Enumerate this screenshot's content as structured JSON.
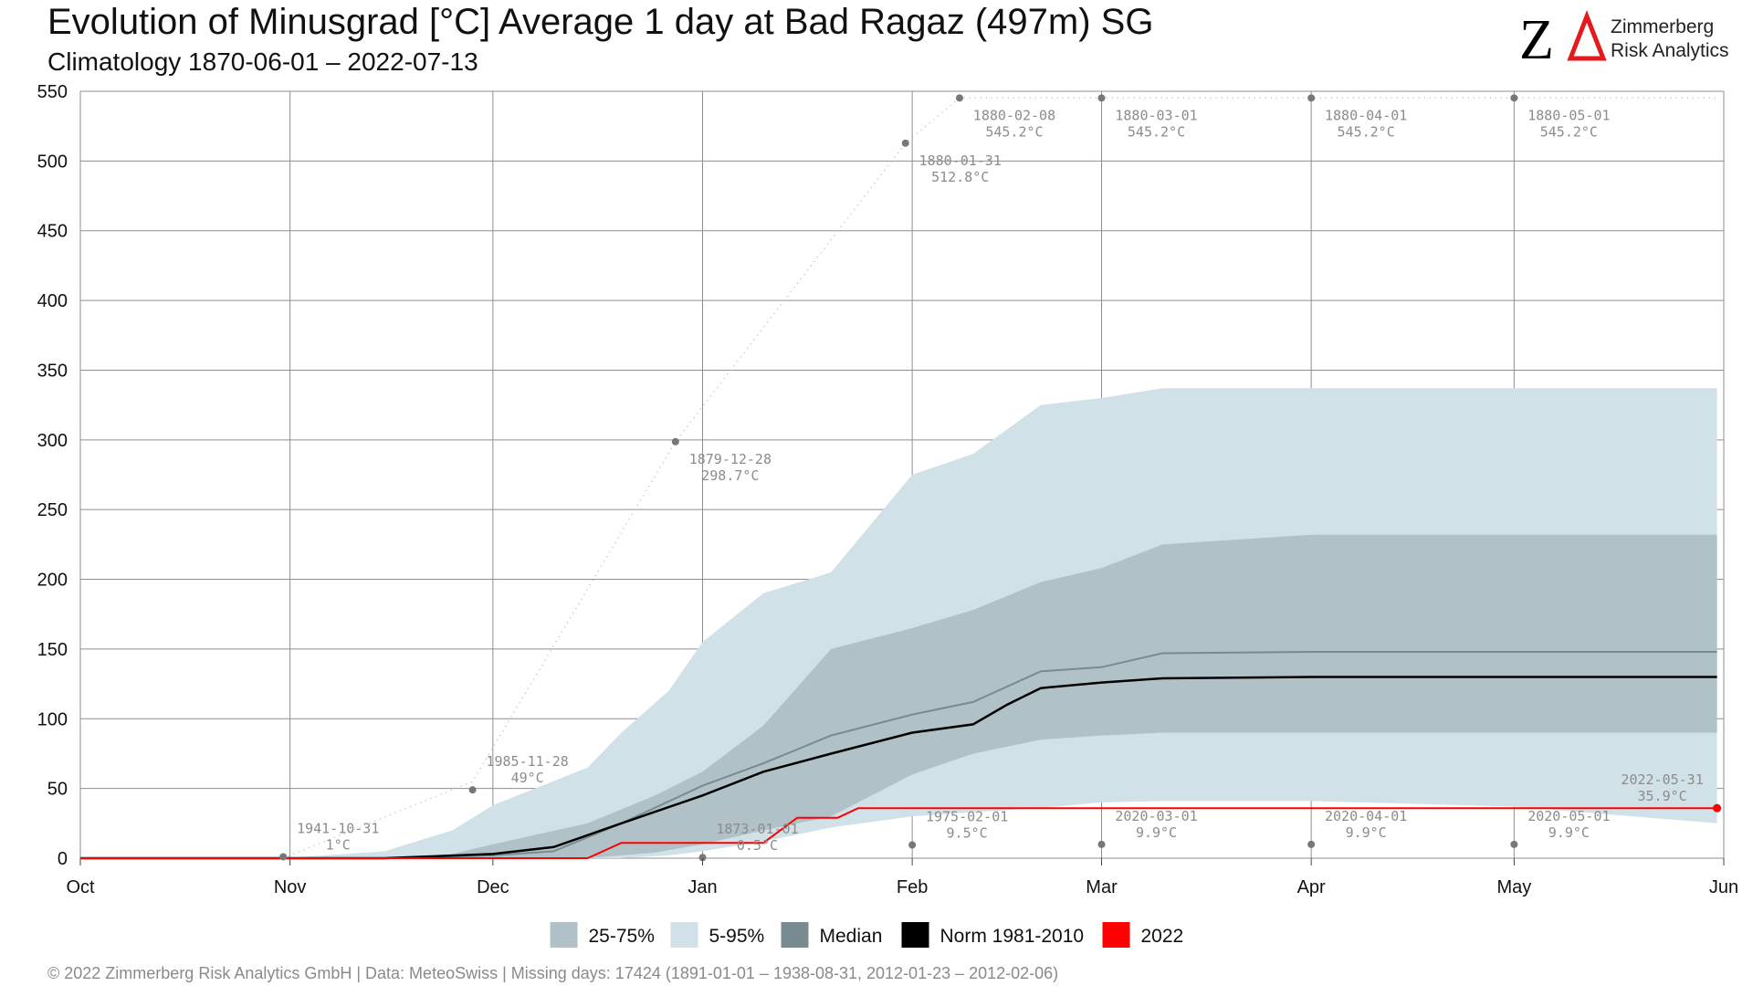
{
  "header": {
    "title": "Evolution of Minusgrad [°C] Average 1 day at Bad Ragaz (497m) SG",
    "subtitle": "Climatology 1870-06-01 – 2022-07-13"
  },
  "logo": {
    "mark": "ZΔ",
    "line1": "Zimmerberg",
    "line2": "Risk Analytics",
    "colors": {
      "z": "#000000",
      "delta": "#e41a1c"
    }
  },
  "footer": {
    "text": "©  2022 Zimmerberg Risk Analytics GmbH | Data: MeteoSwiss | Missing days: 17424 (1891-01-01 – 1938-08-31, 2012-01-23 – 2012-02-06)"
  },
  "colors": {
    "band_25_75": "#b0c1c7",
    "band_5_95": "#d0e2e8",
    "median": "#778b91",
    "norm": "#000000",
    "current": "#ff0000",
    "annotation": "#8c8c8c",
    "grid": "#8f8f8f"
  },
  "chart_data": {
    "type": "area",
    "title": "Evolution of Minusgrad [°C] Average 1 day at Bad Ragaz (497m) SG",
    "subtitle": "Climatology 1870-06-01 – 2022-07-13",
    "x_axis": {
      "type": "date",
      "range": [
        "Oct 1",
        "Jun 1"
      ],
      "tick_labels": [
        "Oct",
        "Nov",
        "Dec",
        "Jan",
        "Feb",
        "Mar",
        "Apr",
        "May",
        "Jun"
      ]
    },
    "y_axis": {
      "range": [
        0,
        550
      ],
      "ticks": [
        0,
        50,
        100,
        150,
        200,
        250,
        300,
        350,
        400,
        450,
        500,
        550
      ]
    },
    "grid": true,
    "legend": {
      "position": "bottom",
      "entries": [
        {
          "label": "25-75%",
          "color": "#b0c1c7"
        },
        {
          "label": "5-95%",
          "color": "#d0e2e8"
        },
        {
          "label": "Median",
          "color": "#778b91"
        },
        {
          "label": "Norm 1981-2010",
          "color": "#000000"
        },
        {
          "label": "2022",
          "color": "#ff0000"
        }
      ]
    },
    "series": {
      "band_5_95": [
        {
          "x": "Oct 1",
          "lo": 0,
          "hi": 0
        },
        {
          "x": "Oct 31",
          "lo": 0,
          "hi": 0
        },
        {
          "x": "Nov 15",
          "lo": 0,
          "hi": 5
        },
        {
          "x": "Nov 25",
          "lo": 0,
          "hi": 20
        },
        {
          "x": "Dec 1",
          "lo": 0,
          "hi": 38
        },
        {
          "x": "Dec 15",
          "lo": 0,
          "hi": 65
        },
        {
          "x": "Dec 20",
          "lo": 0,
          "hi": 90
        },
        {
          "x": "Dec 27",
          "lo": 2,
          "hi": 120
        },
        {
          "x": "Jan 1",
          "lo": 5,
          "hi": 155
        },
        {
          "x": "Jan 10",
          "lo": 12,
          "hi": 190
        },
        {
          "x": "Jan 20",
          "lo": 22,
          "hi": 205
        },
        {
          "x": "Feb 1",
          "lo": 30,
          "hi": 275
        },
        {
          "x": "Feb 10",
          "lo": 33,
          "hi": 290
        },
        {
          "x": "Feb 20",
          "lo": 36,
          "hi": 325
        },
        {
          "x": "Mar 1",
          "lo": 40,
          "hi": 330
        },
        {
          "x": "Mar 10",
          "lo": 41,
          "hi": 337
        },
        {
          "x": "Apr 1",
          "lo": 41,
          "hi": 337
        },
        {
          "x": "May 1",
          "lo": 37,
          "hi": 337
        },
        {
          "x": "May 31",
          "lo": 25,
          "hi": 337
        }
      ],
      "band_25_75": [
        {
          "x": "Oct 1",
          "lo": 0,
          "hi": 0
        },
        {
          "x": "Nov 15",
          "lo": 0,
          "hi": 0
        },
        {
          "x": "Nov 25",
          "lo": 0,
          "hi": 3
        },
        {
          "x": "Dec 1",
          "lo": 0,
          "hi": 10
        },
        {
          "x": "Dec 15",
          "lo": 0,
          "hi": 25
        },
        {
          "x": "Dec 25",
          "lo": 4,
          "hi": 45
        },
        {
          "x": "Jan 1",
          "lo": 10,
          "hi": 62
        },
        {
          "x": "Jan 10",
          "lo": 20,
          "hi": 95
        },
        {
          "x": "Jan 20",
          "lo": 30,
          "hi": 150
        },
        {
          "x": "Feb 1",
          "lo": 60,
          "hi": 165
        },
        {
          "x": "Feb 10",
          "lo": 75,
          "hi": 178
        },
        {
          "x": "Feb 20",
          "lo": 85,
          "hi": 198
        },
        {
          "x": "Mar 1",
          "lo": 88,
          "hi": 208
        },
        {
          "x": "Mar 10",
          "lo": 90,
          "hi": 225
        },
        {
          "x": "Apr 1",
          "lo": 90,
          "hi": 232
        },
        {
          "x": "May 31",
          "lo": 90,
          "hi": 232
        }
      ],
      "median": [
        {
          "x": "Oct 1",
          "y": 0
        },
        {
          "x": "Nov 15",
          "y": 0
        },
        {
          "x": "Dec 1",
          "y": 2
        },
        {
          "x": "Dec 10",
          "y": 5
        },
        {
          "x": "Dec 20",
          "y": 25
        },
        {
          "x": "Jan 1",
          "y": 52
        },
        {
          "x": "Jan 10",
          "y": 68
        },
        {
          "x": "Jan 20",
          "y": 88
        },
        {
          "x": "Feb 1",
          "y": 103
        },
        {
          "x": "Feb 10",
          "y": 112
        },
        {
          "x": "Feb 20",
          "y": 134
        },
        {
          "x": "Mar 1",
          "y": 137
        },
        {
          "x": "Mar 10",
          "y": 147
        },
        {
          "x": "Apr 1",
          "y": 148
        },
        {
          "x": "May 31",
          "y": 148
        }
      ],
      "norm_1981_2010": [
        {
          "x": "Oct 1",
          "y": 0
        },
        {
          "x": "Nov 15",
          "y": 0
        },
        {
          "x": "Dec 1",
          "y": 3
        },
        {
          "x": "Dec 10",
          "y": 8
        },
        {
          "x": "Dec 20",
          "y": 25
        },
        {
          "x": "Jan 1",
          "y": 45
        },
        {
          "x": "Jan 10",
          "y": 62
        },
        {
          "x": "Jan 20",
          "y": 75
        },
        {
          "x": "Feb 1",
          "y": 90
        },
        {
          "x": "Feb 10",
          "y": 96
        },
        {
          "x": "Feb 15",
          "y": 110
        },
        {
          "x": "Feb 20",
          "y": 122
        },
        {
          "x": "Mar 1",
          "y": 126
        },
        {
          "x": "Mar 10",
          "y": 129
        },
        {
          "x": "Apr 1",
          "y": 130
        },
        {
          "x": "May 31",
          "y": 130
        }
      ],
      "year_2022": [
        {
          "x": "Oct 1",
          "y": 0
        },
        {
          "x": "Dec 15",
          "y": 0
        },
        {
          "x": "Dec 20",
          "y": 11
        },
        {
          "x": "Jan 10",
          "y": 11
        },
        {
          "x": "Jan 15",
          "y": 29
        },
        {
          "x": "Jan 21",
          "y": 29
        },
        {
          "x": "Jan 24",
          "y": 35.9
        },
        {
          "x": "May 31",
          "y": 35.9
        }
      ]
    },
    "record_max_markers": [
      {
        "x": "Nov 28",
        "y": 49,
        "date": "1985-11-28",
        "value": "49°C"
      },
      {
        "x": "Dec 28",
        "y": 298.7,
        "date": "1879-12-28",
        "value": "298.7°C"
      },
      {
        "x": "Jan 31",
        "y": 512.8,
        "date": "1880-01-31",
        "value": "512.8°C"
      },
      {
        "x": "Feb 8",
        "y": 545.2,
        "date": "1880-02-08",
        "value": "545.2°C"
      },
      {
        "x": "Mar 1",
        "y": 545.2,
        "date": "1880-03-01",
        "value": "545.2°C"
      },
      {
        "x": "Apr 1",
        "y": 545.2,
        "date": "1880-04-01",
        "value": "545.2°C"
      },
      {
        "x": "May 1",
        "y": 545.2,
        "date": "1880-05-01",
        "value": "545.2°C"
      }
    ],
    "record_min_markers": [
      {
        "x": "Oct 31",
        "y": 1,
        "date": "1941-10-31",
        "value": "1°C"
      },
      {
        "x": "Jan 1",
        "y": 0.5,
        "date": "1873-01-01",
        "value": "0.5°C"
      },
      {
        "x": "Feb 1",
        "y": 9.5,
        "date": "1975-02-01",
        "value": "9.5°C"
      },
      {
        "x": "Mar 1",
        "y": 9.9,
        "date": "2020-03-01",
        "value": "9.9°C"
      },
      {
        "x": "Apr 1",
        "y": 9.9,
        "date": "2020-04-01",
        "value": "9.9°C"
      },
      {
        "x": "May 1",
        "y": 9.9,
        "date": "2020-05-01",
        "value": "9.9°C"
      }
    ],
    "current_marker": {
      "x": "May 31",
      "y": 35.9,
      "date": "2022-05-31",
      "value": "35.9°C"
    }
  }
}
